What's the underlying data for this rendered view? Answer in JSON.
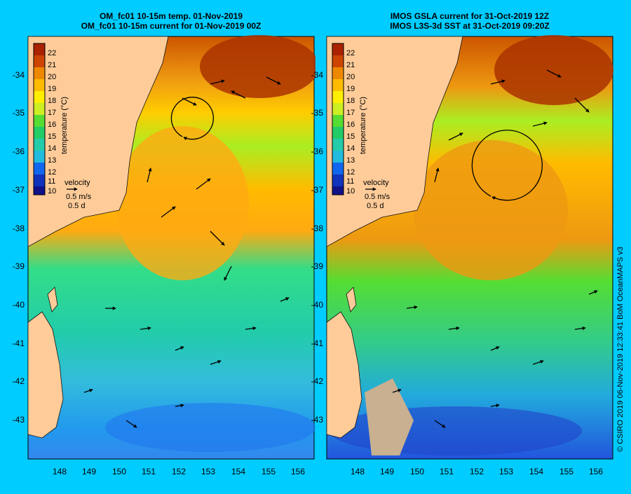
{
  "colors": {
    "background": "#00ccff",
    "land": "#ffcc99",
    "nodata": "#c8b090"
  },
  "panels": [
    {
      "title_line1": "OM_fc01 10-15m temp. 01-Nov-2019",
      "title_line2": "OM_fc01 10-15m current for 01-Nov-2019 00Z",
      "y_ticks": [
        "-34",
        "-35",
        "-36",
        "-37",
        "-38",
        "-39",
        "-40",
        "-41",
        "-42",
        "-43"
      ],
      "x_ticks": [
        "148",
        "149",
        "150",
        "151",
        "152",
        "153",
        "154",
        "155",
        "156"
      ],
      "colorbar_ticks": [
        "22",
        "21",
        "20",
        "19",
        "18",
        "17",
        "16",
        "15",
        "14",
        "13",
        "12",
        "11",
        "10"
      ],
      "colorbar_label": "temperature (°C)",
      "velocity_label": "velocity",
      "velocity_scale": "0.5 m/s",
      "velocity_time": "0.5 d"
    },
    {
      "title_line1": "IMOS GSLA current for 31-Oct-2019 12Z",
      "title_line2": "IMOS L3S-3d SST at 31-Oct-2019 09:20Z",
      "y_ticks": [
        "-34",
        "-35",
        "-36",
        "-37",
        "-38",
        "-39",
        "-40",
        "-41",
        "-42",
        "-43"
      ],
      "x_ticks": [
        "148",
        "149",
        "150",
        "151",
        "152",
        "153",
        "154",
        "155",
        "156"
      ],
      "colorbar_ticks": [
        "22",
        "21",
        "20",
        "19",
        "18",
        "17",
        "16",
        "15",
        "14",
        "13",
        "12",
        "11",
        "10"
      ],
      "colorbar_label": "temperature (°C)",
      "velocity_label": "velocity",
      "velocity_scale": "0.5 m/s",
      "velocity_time": "0.5 d"
    }
  ],
  "credit": "© CSIRO 2019   06-Nov-2019 12:33:41 BoM OceanMAPS v3"
}
